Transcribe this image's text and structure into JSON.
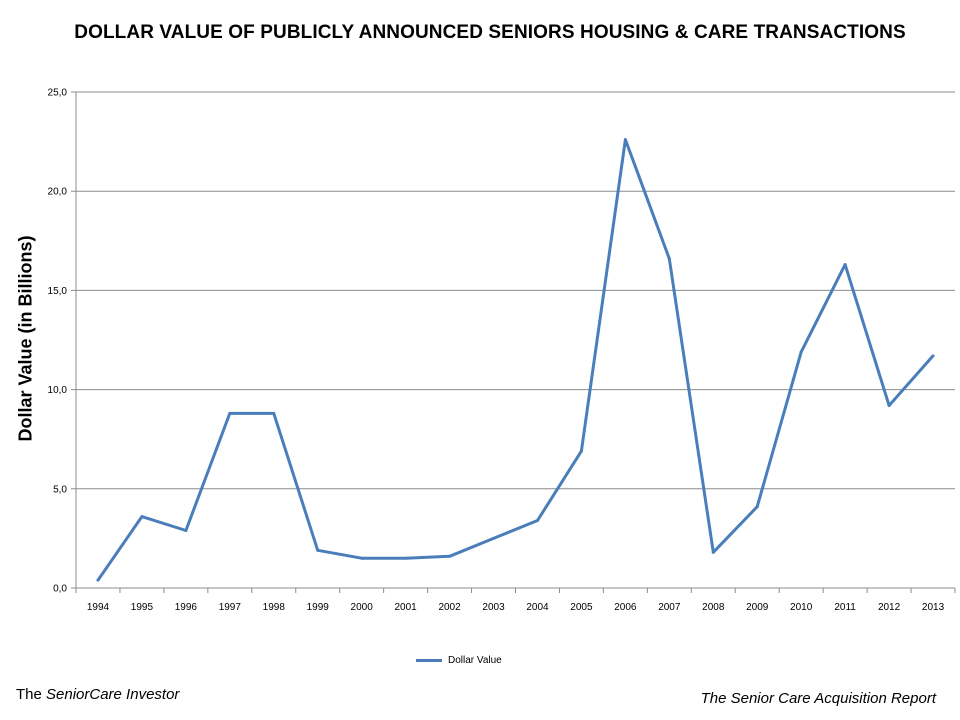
{
  "chart_data": {
    "type": "line",
    "title": "DOLLAR VALUE OF PUBLICLY ANNOUNCED SENIORS HOUSING & CARE TRANSACTIONS",
    "xlabel": "",
    "ylabel": "Dollar Value (in Billions)",
    "categories": [
      "1994",
      "1995",
      "1996",
      "1997",
      "1998",
      "1999",
      "2000",
      "2001",
      "2002",
      "2003",
      "2004",
      "2005",
      "2006",
      "2007",
      "2008",
      "2009",
      "2010",
      "2011",
      "2012",
      "2013"
    ],
    "series": [
      {
        "name": "Dollar Value",
        "color": "#4a7ebb",
        "values": [
          0.4,
          3.6,
          2.9,
          8.8,
          8.8,
          1.9,
          1.5,
          1.5,
          1.6,
          2.5,
          3.4,
          6.9,
          22.6,
          16.6,
          1.8,
          4.1,
          11.9,
          16.3,
          9.2,
          11.7
        ]
      }
    ],
    "ylim": [
      0,
      25
    ],
    "yticks": [
      "0,0",
      "5,0",
      "10,0",
      "15,0",
      "20,0",
      "25,0"
    ],
    "ytick_values": [
      0,
      5,
      10,
      15,
      20,
      25
    ],
    "grid": "horizontal",
    "legend_position": "bottom"
  },
  "footer": {
    "left_prefix": "The ",
    "left_italic": "SeniorCare Investor",
    "right": "The Senior Care Acquisition Report"
  },
  "colors": {
    "series": "#4a7ebb",
    "gridline": "#8c8c8c",
    "axis": "#8c8c8c"
  }
}
